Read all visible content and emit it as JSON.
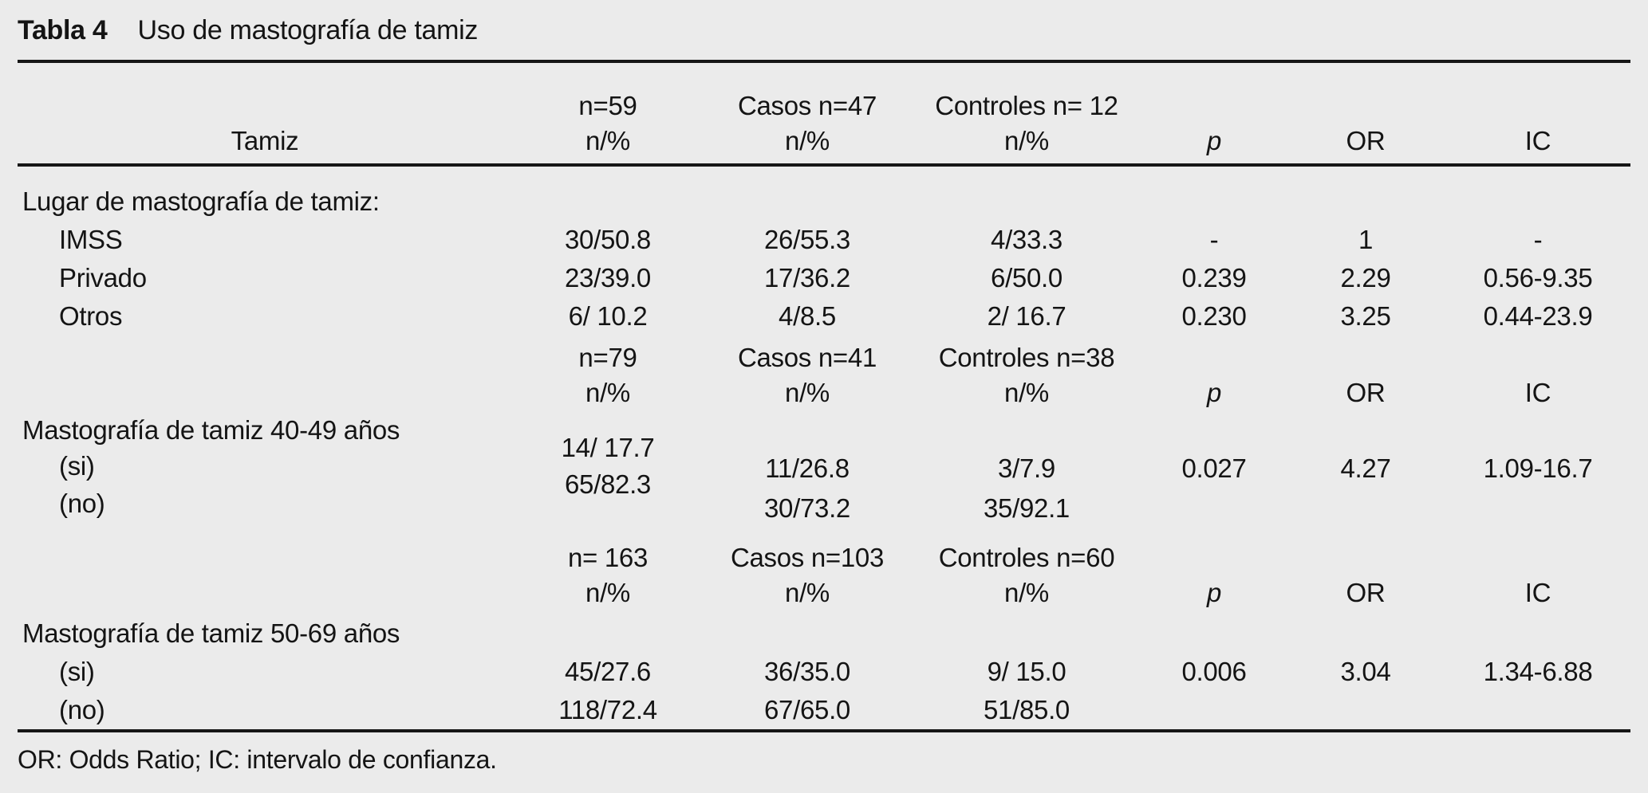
{
  "title": {
    "tag": "Tabla 4",
    "text": "Uso de mastografía de tamiz"
  },
  "header_labels": {
    "stub": "Tamiz",
    "n_pct": "n/%",
    "p": "p",
    "or": "OR",
    "ic": "IC"
  },
  "group1": {
    "header": {
      "total": "n=59",
      "casos": "Casos n=47",
      "controles": "Controles n= 12"
    },
    "section": "Lugar de mastografía de tamiz:",
    "rows": [
      {
        "label": "IMSS",
        "values": [
          "30/50.8",
          "26/55.3",
          "4/33.3",
          "-",
          "1",
          "-"
        ]
      },
      {
        "label": "Privado",
        "values": [
          "23/39.0",
          "17/36.2",
          "6/50.0",
          "0.239",
          "2.29",
          "0.56-9.35"
        ]
      },
      {
        "label": "Otros",
        "values": [
          "6/ 10.2",
          "4/8.5",
          "2/ 16.7",
          "0.230",
          "3.25",
          "0.44-23.9"
        ]
      }
    ]
  },
  "group2": {
    "header": {
      "total": "n=79",
      "casos": "Casos n=41",
      "controles": "Controles n=38"
    },
    "section": "Mastografía de tamiz 40-49 años",
    "row_si": "(si)",
    "row_no": "(no)",
    "total_col": [
      "14/ 17.7",
      "65/82.3"
    ],
    "casos_col": [
      "11/26.8",
      "30/73.2"
    ],
    "controles_col": [
      "3/7.9",
      "35/92.1"
    ],
    "p": "0.027",
    "or": "4.27",
    "ic": "1.09-16.7"
  },
  "group3": {
    "header": {
      "total": "n= 163",
      "casos": "Casos n=103",
      "controles": "Controles n=60"
    },
    "section": "Mastografía de tamiz 50-69 años",
    "rows": [
      {
        "label": "(si)",
        "values": [
          "45/27.6",
          "36/35.0",
          "9/ 15.0",
          "0.006",
          "3.04",
          "1.34-6.88"
        ]
      },
      {
        "label": "(no)",
        "values": [
          "118/72.4",
          "67/65.0",
          "51/85.0",
          "",
          "",
          ""
        ]
      }
    ]
  },
  "footnote": "OR: Odds Ratio; IC: intervalo de confianza."
}
